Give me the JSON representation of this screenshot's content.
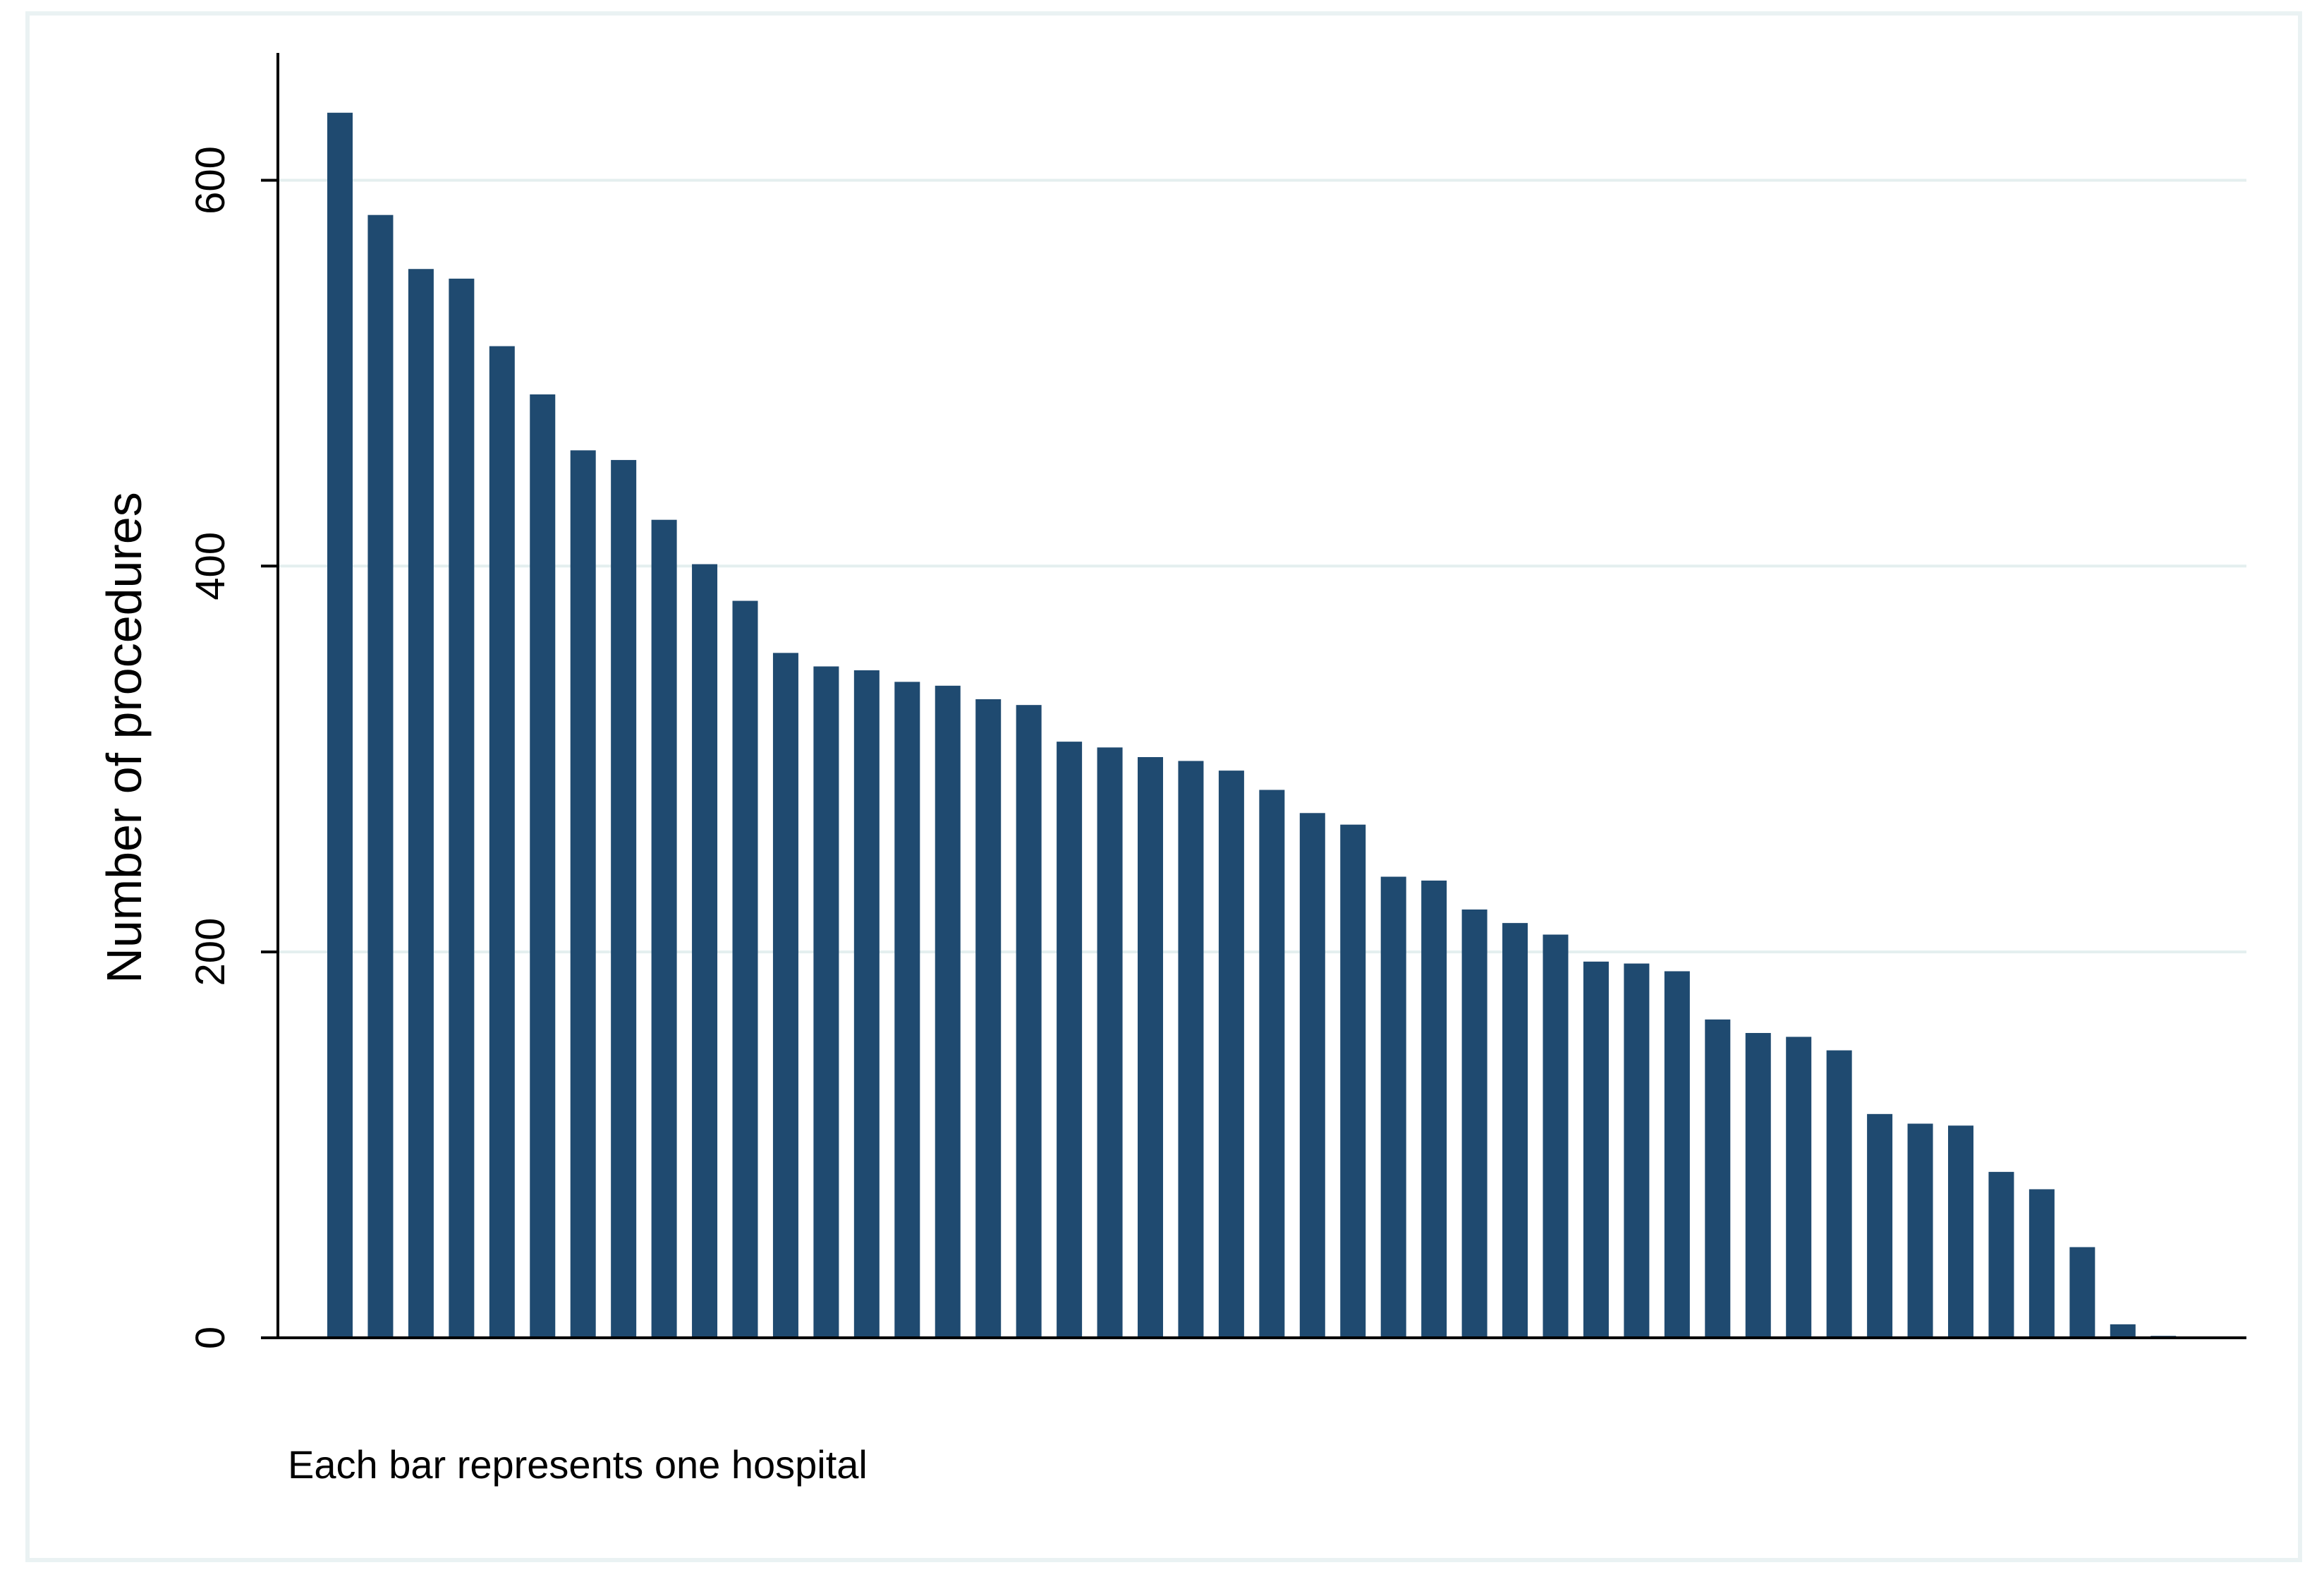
{
  "chart_data": {
    "type": "bar",
    "ylabel": "Number of procedures",
    "note": "Each bar represents one hospital",
    "ylim": [
      0,
      666
    ],
    "yticks": [
      0,
      200,
      400,
      600
    ],
    "yticks_labels": [
      "0",
      "200",
      "400",
      "600"
    ],
    "grid": true,
    "bar_color": "#1f4a70",
    "grid_color": "#e4efef",
    "series": [
      {
        "values": [
          635,
          582,
          554,
          549,
          514,
          489,
          460,
          455,
          424,
          401,
          382,
          355,
          348,
          346,
          340,
          338,
          331,
          328,
          309,
          306,
          301,
          299,
          294,
          284,
          272,
          266,
          239,
          237,
          222,
          215,
          209,
          195,
          194,
          190,
          165,
          158,
          156,
          149,
          116,
          111,
          110,
          86,
          77,
          47,
          7,
          1
        ]
      }
    ]
  }
}
